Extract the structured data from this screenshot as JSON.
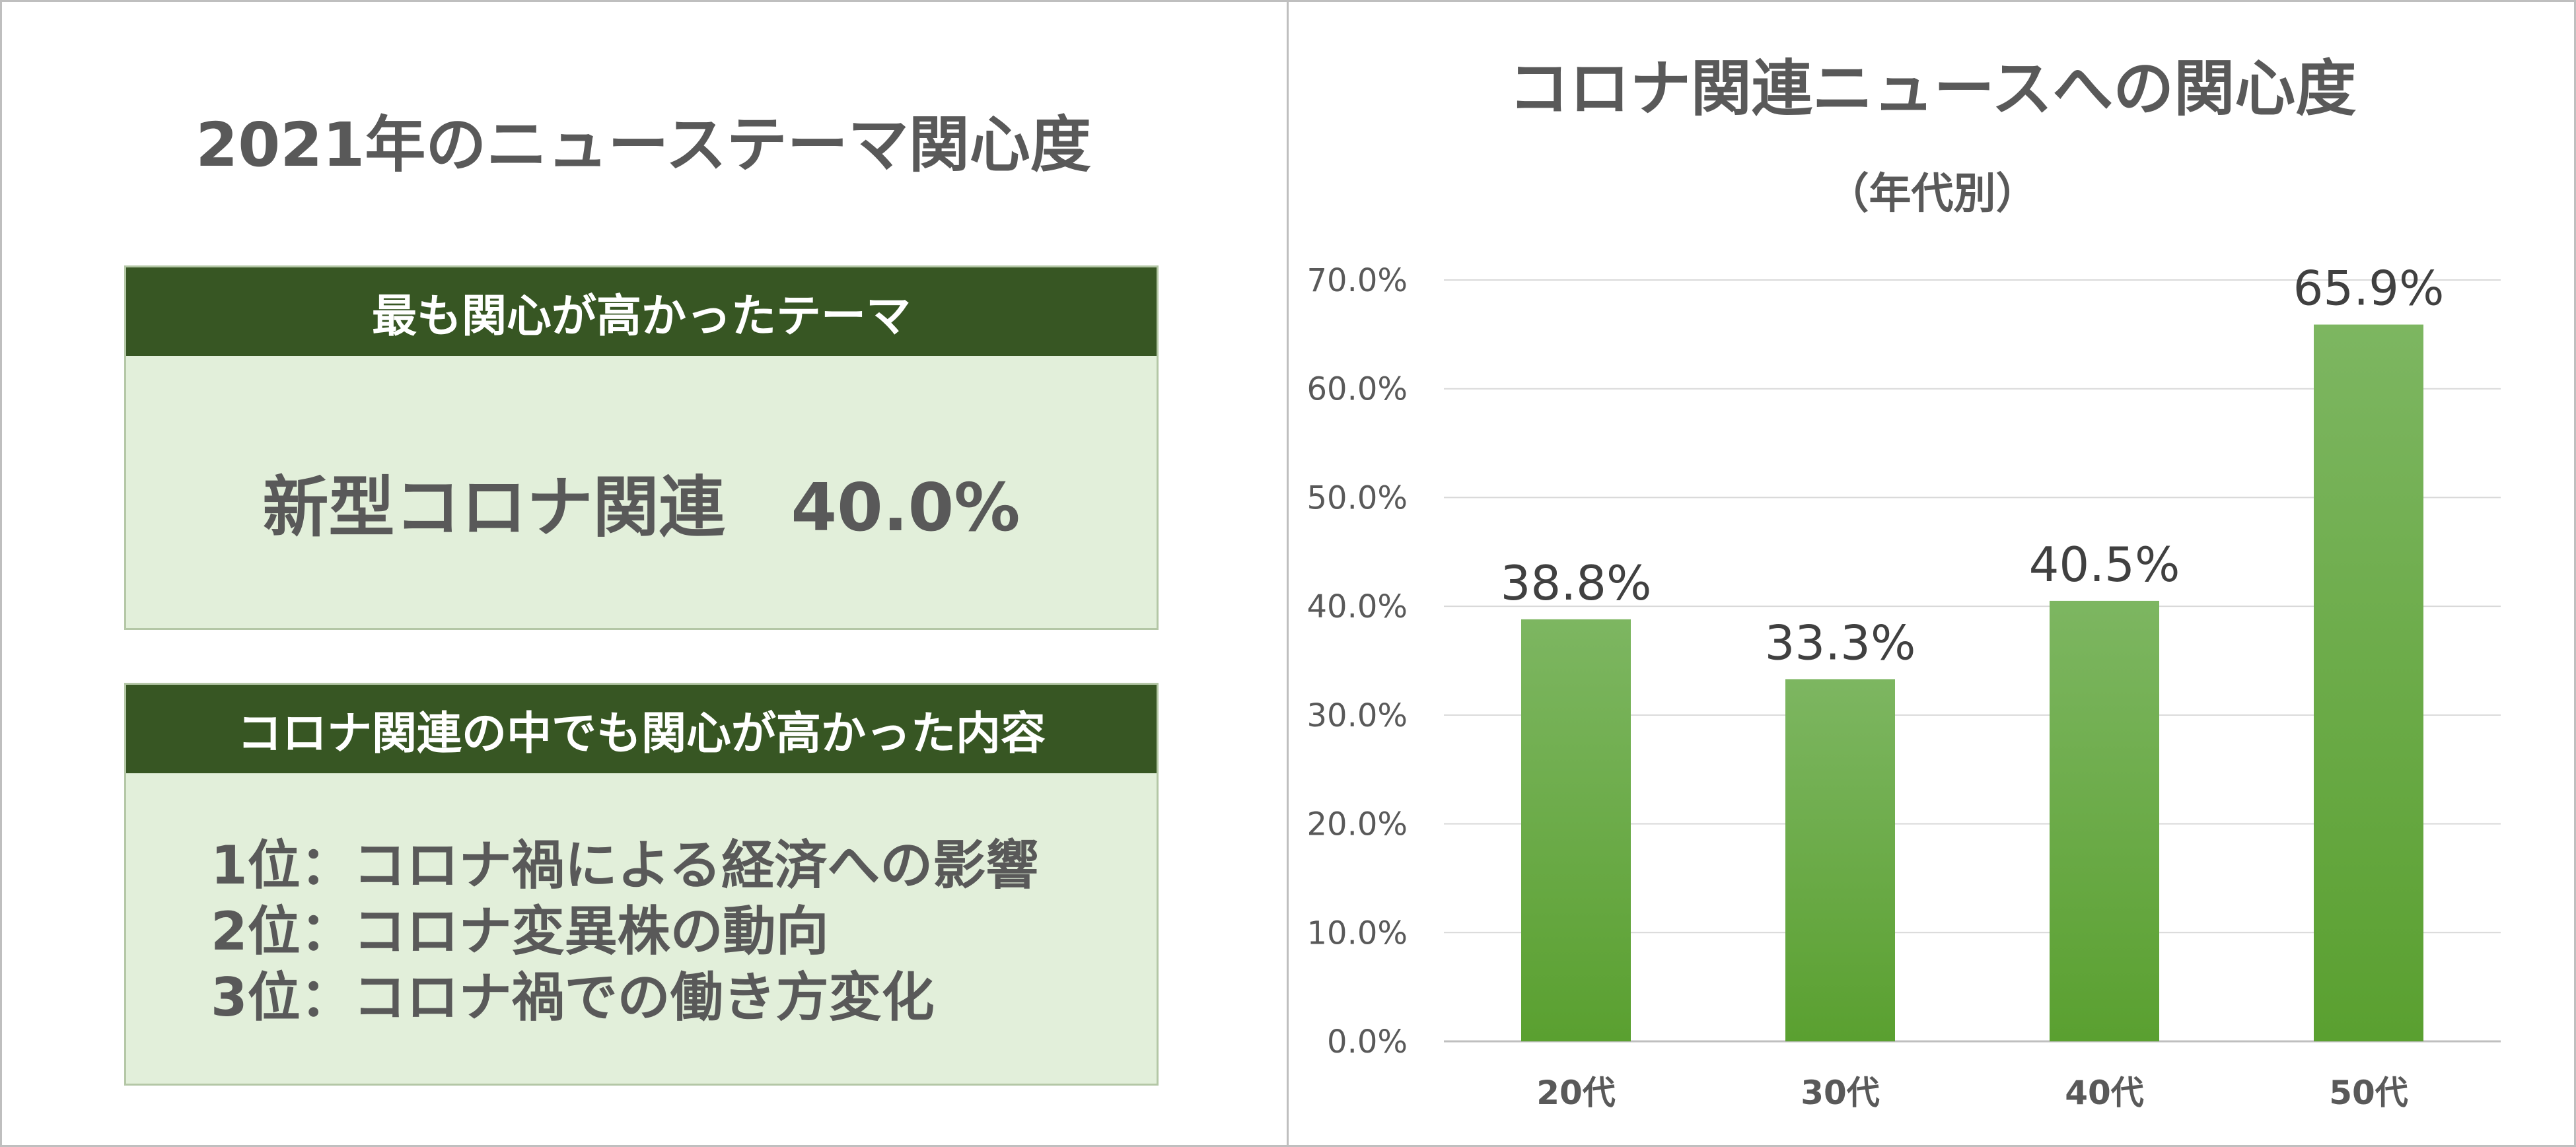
{
  "left_panel": {
    "title": "2021年のニューステーマ関心度",
    "top_theme": {
      "header": "最も関心が高かったテーマ",
      "value": "新型コロナ関連　40.0%"
    },
    "corona_topics": {
      "header": "コロナ関連の中でも関心が高かった内容",
      "items": [
        "1位：コロナ禍による経済への影響",
        "2位：コロナ変異株の動向",
        "3位：コロナ禍での働き方変化"
      ]
    }
  },
  "chart_data": {
    "type": "bar",
    "title": "コロナ関連ニュースへの関心度",
    "subtitle": "（年代別）",
    "categories": [
      "20代",
      "30代",
      "40代",
      "50代"
    ],
    "values": [
      38.8,
      33.3,
      40.5,
      65.9
    ],
    "data_labels": [
      "38.8%",
      "33.3%",
      "40.5%",
      "65.9%"
    ],
    "ylim": [
      0,
      70
    ],
    "yticks": [
      0,
      10,
      20,
      30,
      40,
      50,
      60,
      70
    ],
    "ytick_labels": [
      "0.0%",
      "10.0%",
      "20.0%",
      "30.0%",
      "40.0%",
      "50.0%",
      "60.0%",
      "70.0%"
    ],
    "xlabel": "",
    "ylabel": "",
    "grid": true,
    "colors": {
      "bar_top": "#7db661",
      "bar_bottom": "#5aa030",
      "grid": "#d9d9d9",
      "axis": "#bfbfbf"
    }
  }
}
